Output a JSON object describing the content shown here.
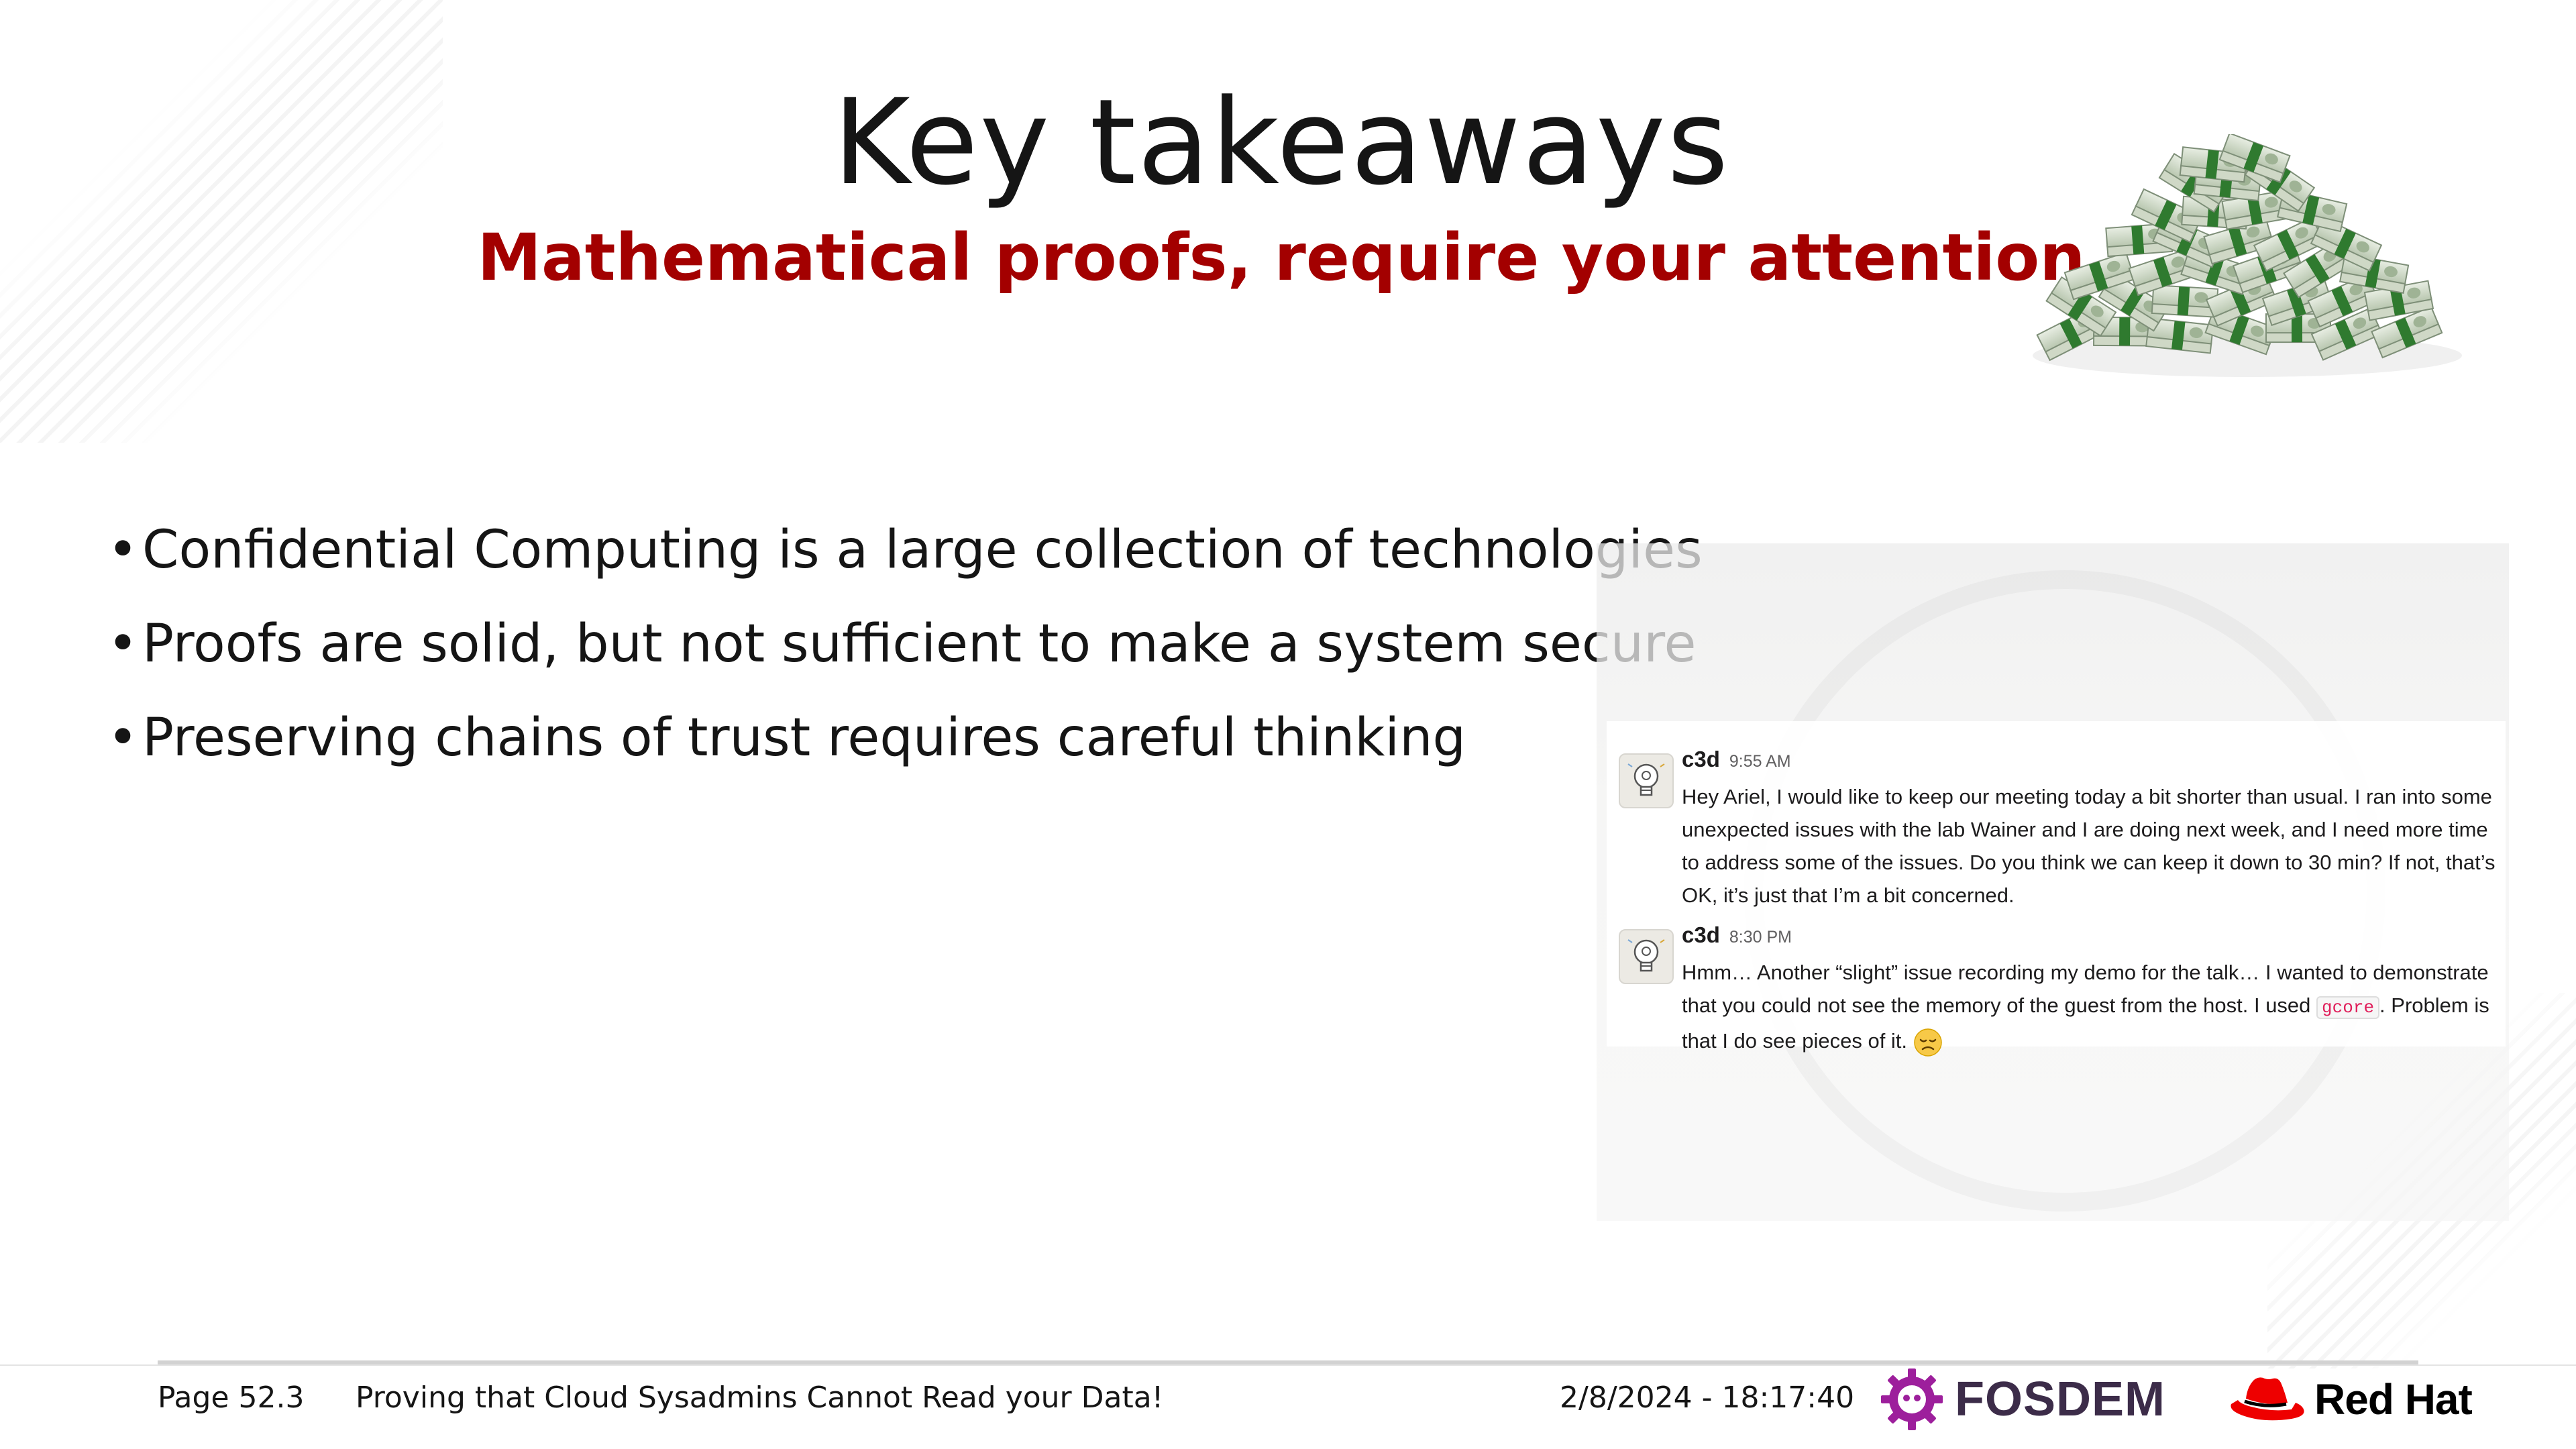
{
  "slide": {
    "title": "Key takeaways",
    "subtitle": "Mathematical proofs, require your attention",
    "bullet_marker": "•",
    "bullets": [
      "Confidential Computing is a large collection of technologies",
      "Proofs are solid, but not sufficient to make a system secure",
      "Preserving chains of trust requires careful thinking"
    ]
  },
  "chat": {
    "messages": [
      {
        "user": "c3d",
        "time": "9:55 AM",
        "text": "Hey Ariel, I would like to keep our meeting today a bit shorter than usual. I ran into some unexpected issues with the lab Wainer and I are doing next week, and I need more time to address some of the issues. Do you think we can keep it down to 30 min? If not, that’s OK, it’s just that I’m a bit concerned."
      },
      {
        "user": "c3d",
        "time": "8:30 PM",
        "text_before": "Hmm… Another “slight” issue recording my demo for the talk… I wanted to demonstrate that you could not see the memory of the guest from the host. I used ",
        "code": "gcore",
        "text_after": ". Problem is that I do see pieces of it. ",
        "emoji": "disappointed-face-icon"
      }
    ]
  },
  "footer": {
    "page": "Page 52.3",
    "talk_title": "Proving that Cloud Sysadmins Cannot Read your Data!",
    "datetime": "2/8/2024 - 18:17:40",
    "fosdem_label": "FOSDEM",
    "redhat_label": "Red Hat"
  },
  "colors": {
    "accent": "#a30000",
    "text": "#151515",
    "fosdem": "#3c2c49",
    "redhat": "#ee0000",
    "money_green": "#2f7a2f"
  }
}
